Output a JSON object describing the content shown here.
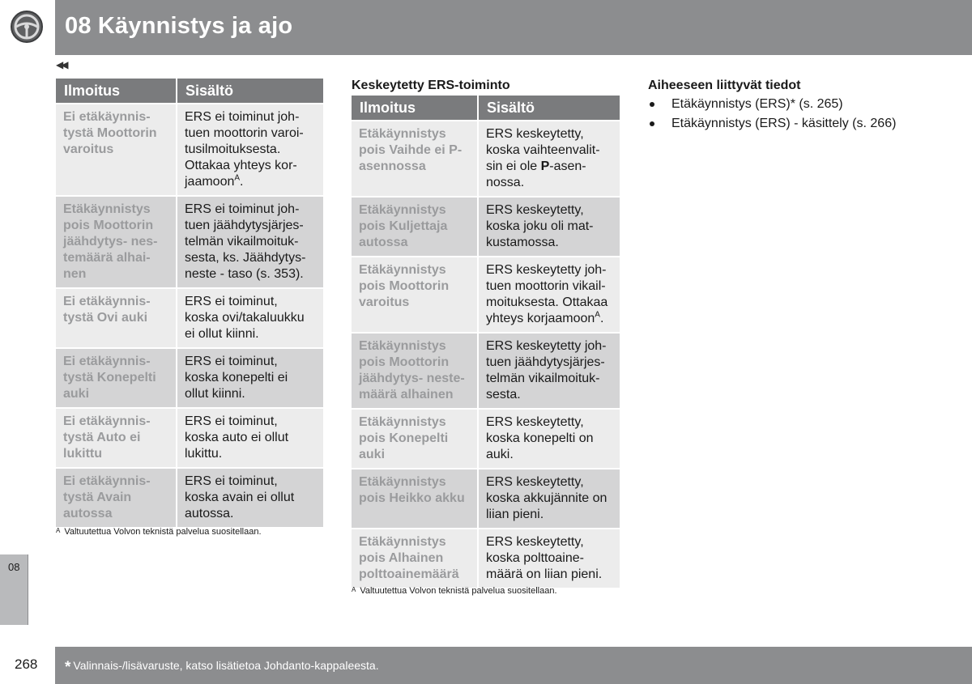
{
  "header": {
    "chapter_title": "08 Käynnistys ja ajo",
    "icon": "steering-wheel-icon",
    "back_icon": "double-left-arrow-icon",
    "back_glyph": "◀◀"
  },
  "table1": {
    "headers": [
      "Ilmoitus",
      "Sisältö"
    ],
    "rows": [
      {
        "message": "Ei etäkäynnis-\ntystä Moottorin\nvaroitus",
        "content": "ERS ei toiminut joh-\ntuen moottorin varoi-\ntusilmoituksesta.\nOttakaa yhteys kor-\njaamoon",
        "sup": "A",
        "tail": "."
      },
      {
        "message": "Etäkäynnistys\npois Moottorin\njäähdytys- nes-\ntemäärä alhai-\nnen",
        "content": "ERS ei toiminut joh-\ntuen jäähdytysjärjes-\ntelmän vikailmoituk-\nsesta, ks. Jäähdytys-\nneste - taso (s. 353)."
      },
      {
        "message": "Ei etäkäynnis-\ntystä Ovi auki",
        "content": "ERS ei toiminut,\nkoska ovi/takaluukku\nei ollut kiinni."
      },
      {
        "message": "Ei etäkäynnis-\ntystä Konepelti\nauki",
        "content": "ERS ei toiminut,\nkoska konepelti ei\nollut kiinni."
      },
      {
        "message": "Ei etäkäynnis-\ntystä Auto ei\nlukittu",
        "content": "ERS ei toiminut,\nkoska auto ei ollut\nlukittu."
      },
      {
        "message": "Ei etäkäynnis-\ntystä Avain\nautossa",
        "content": "ERS ei toiminut,\nkoska avain ei ollut\nautossa."
      }
    ],
    "footnote_mark": "A",
    "footnote": "Valtuutettua Volvon teknistä palvelua suositellaan."
  },
  "table2": {
    "heading": "Keskeytetty ERS-toiminto",
    "headers": [
      "Ilmoitus",
      "Sisältö"
    ],
    "rows": [
      {
        "message": "Etäkäynnistys\npois Vaihde ei P-\nasennossa",
        "content_pre": "ERS keskeytetty,\nkoska vaihteenvalit-\nsin ei ole ",
        "content_bold": "P",
        "content_post": "-asen-\nnossa."
      },
      {
        "message": "Etäkäynnistys\npois Kuljettaja\nautossa",
        "content": "ERS keskeytetty,\nkoska joku oli mat-\nkustamossa."
      },
      {
        "message": "Etäkäynnistys\npois Moottorin\nvaroitus",
        "content": "ERS keskeytetty joh-\ntuen moottorin vikail-\nmoituksesta. Ottakaa\nyhteys korjaamoon",
        "sup": "A",
        "tail": "."
      },
      {
        "message": "Etäkäynnistys\npois Moottorin\njäähdytys- neste-\nmäärä alhainen",
        "content": "ERS keskeytetty joh-\ntuen jäähdytysjärjes-\ntelmän vikailmoituk-\nsesta."
      },
      {
        "message": "Etäkäynnistys\npois Konepelti\nauki",
        "content": "ERS keskeytetty,\nkoska konepelti on\nauki."
      },
      {
        "message": "Etäkäynnistys\npois Heikko akku",
        "content": "ERS keskeytetty,\nkoska akkujännite on\nliian pieni."
      },
      {
        "message": "Etäkäynnistys\npois Alhainen\npolttoainemäärä",
        "content": "ERS keskeytetty,\nkoska polttoaine-\nmäärä on liian pieni."
      }
    ],
    "footnote_mark": "A",
    "footnote": "Valtuutettua Volvon teknistä palvelua suositellaan."
  },
  "related": {
    "title": "Aiheeseen liittyvät tiedot",
    "items": [
      "Etäkäynnistys (ERS)* (s. 265)",
      "Etäkäynnistys (ERS) - käsittely (s. 266)"
    ]
  },
  "side_tab": "08",
  "footer": {
    "page_number": "268",
    "star": "*",
    "note": "Valinnais-/lisävaruste, katso lisätietoa Johdanto-kappaleesta."
  }
}
